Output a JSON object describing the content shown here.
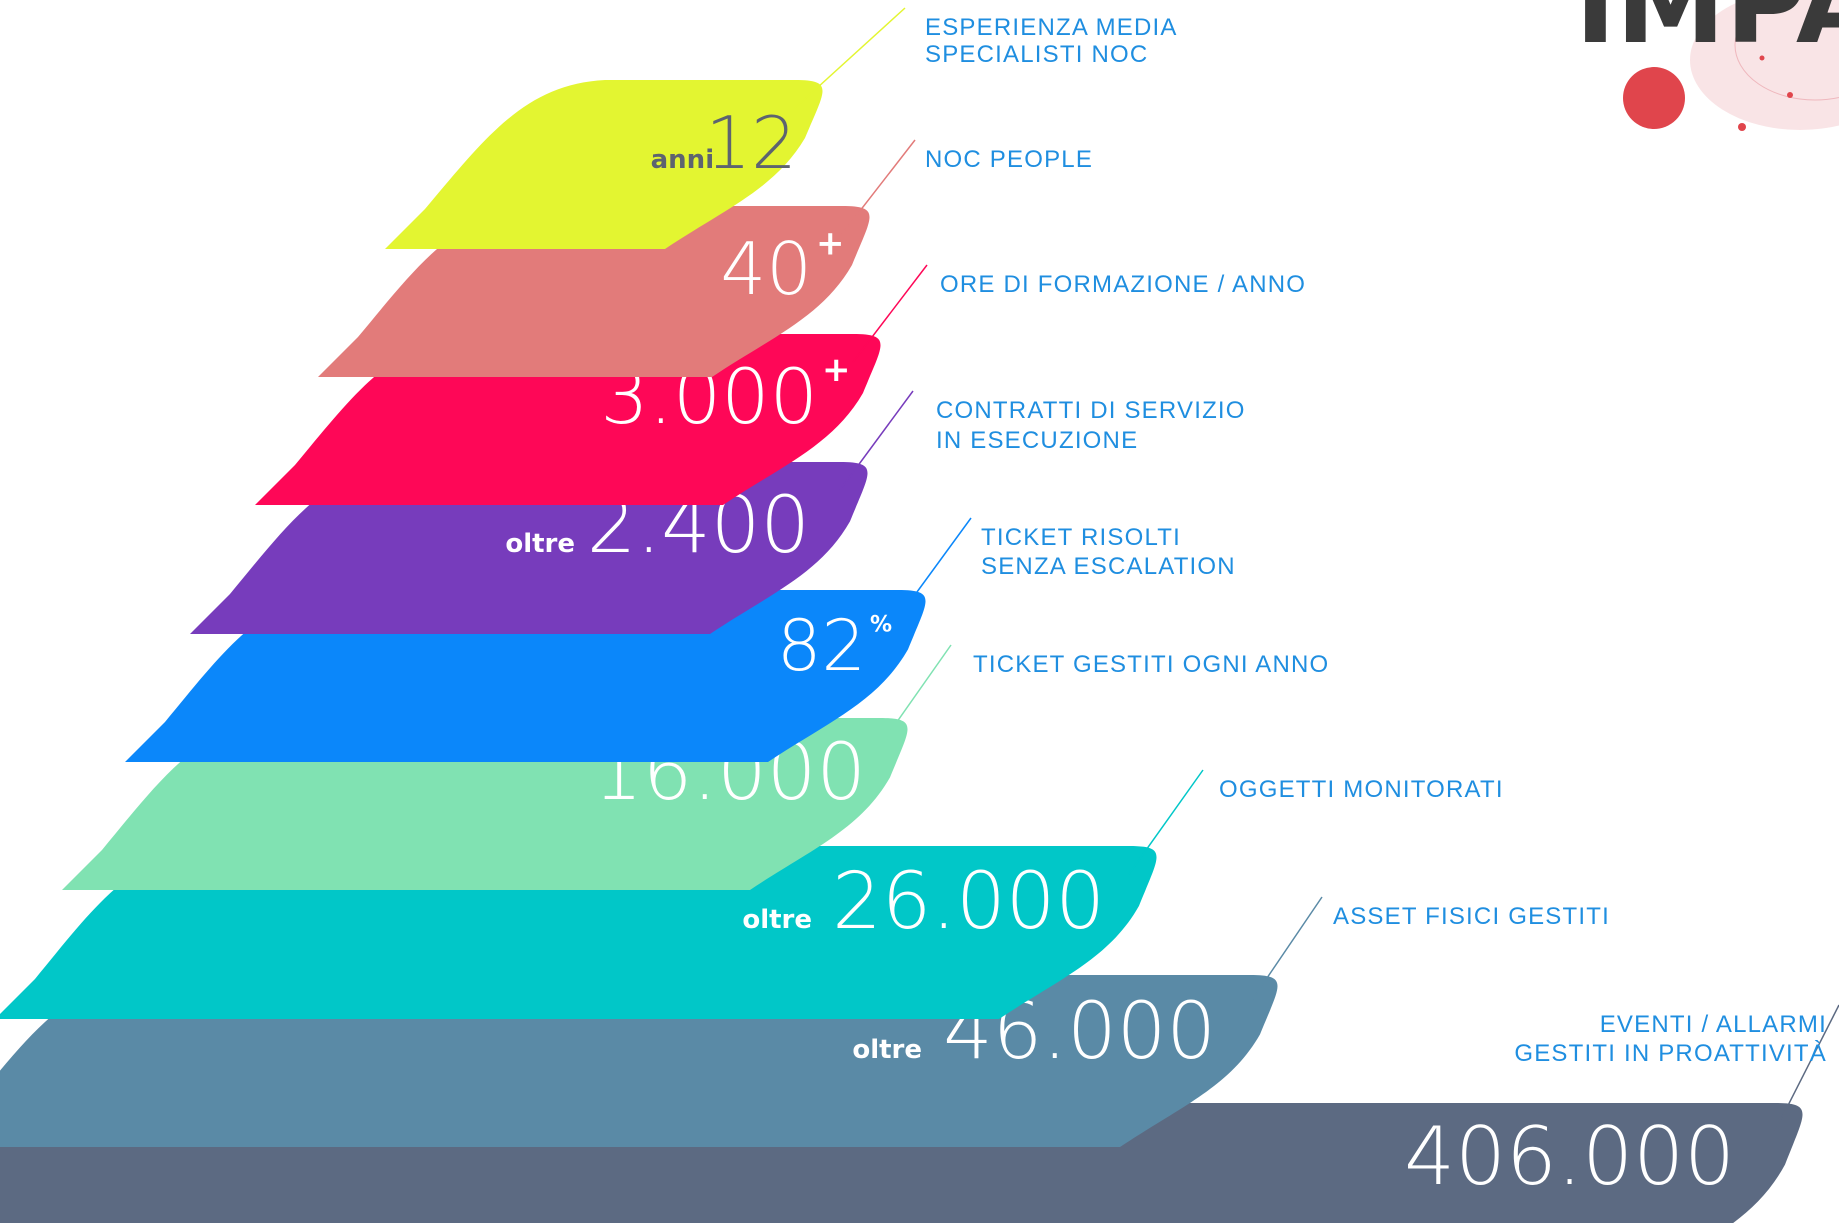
{
  "infographic": {
    "bands": [
      {
        "id": "esperienza",
        "color": "#e3f531",
        "prefix": "anni",
        "value": "12",
        "sup": "",
        "label_lines": [
          "ESPERIENZA MEDIA",
          "SPECIALISTI NOC"
        ]
      },
      {
        "id": "noc-people",
        "color": "#e27b7a",
        "prefix": "",
        "value": "40",
        "sup": "+",
        "label_lines": [
          "NOC PEOPLE"
        ]
      },
      {
        "id": "ore-formazione",
        "color": "#fe0757",
        "prefix": "",
        "value": "3.000",
        "sup": "+",
        "label_lines": [
          "ORE DI FORMAZIONE / ANNO"
        ]
      },
      {
        "id": "contratti",
        "color": "#773cbc",
        "prefix": "oltre",
        "value": "2.400",
        "sup": "",
        "label_lines": [
          "CONTRATTI DI SERVIZIO",
          "IN ESECUZIONE"
        ]
      },
      {
        "id": "ticket-risolti",
        "color": "#0b87fa",
        "prefix": "",
        "value": "82",
        "sup": "%",
        "label_lines": [
          "TICKET RISOLTI",
          "SENZA ESCALATION"
        ]
      },
      {
        "id": "ticket-gestiti",
        "color": "#80e2b2",
        "prefix": "",
        "value": "16.000",
        "sup": "",
        "label_lines": [
          "TICKET GESTITI OGNI ANNO"
        ]
      },
      {
        "id": "oggetti-monitorati",
        "color": "#01c7c8",
        "prefix": "oltre",
        "value": "26.000",
        "sup": "",
        "label_lines": [
          "OGGETTI MONITORATI"
        ]
      },
      {
        "id": "asset-fisici",
        "color": "#5a8aa6",
        "prefix": "oltre",
        "value": "46.000",
        "sup": "",
        "label_lines": [
          "ASSET FISICI GESTITI"
        ]
      },
      {
        "id": "eventi-allarmi",
        "color": "#5c6a82",
        "prefix": "",
        "value": "406.000",
        "sup": "",
        "label_lines": [
          "EVENTI / ALLARMI",
          "GESTITI IN PROATTIVITÀ"
        ]
      }
    ],
    "label_color": "#1f8ee0",
    "logo": {
      "text": "IMPA",
      "accent_color": "#e0454c"
    }
  }
}
